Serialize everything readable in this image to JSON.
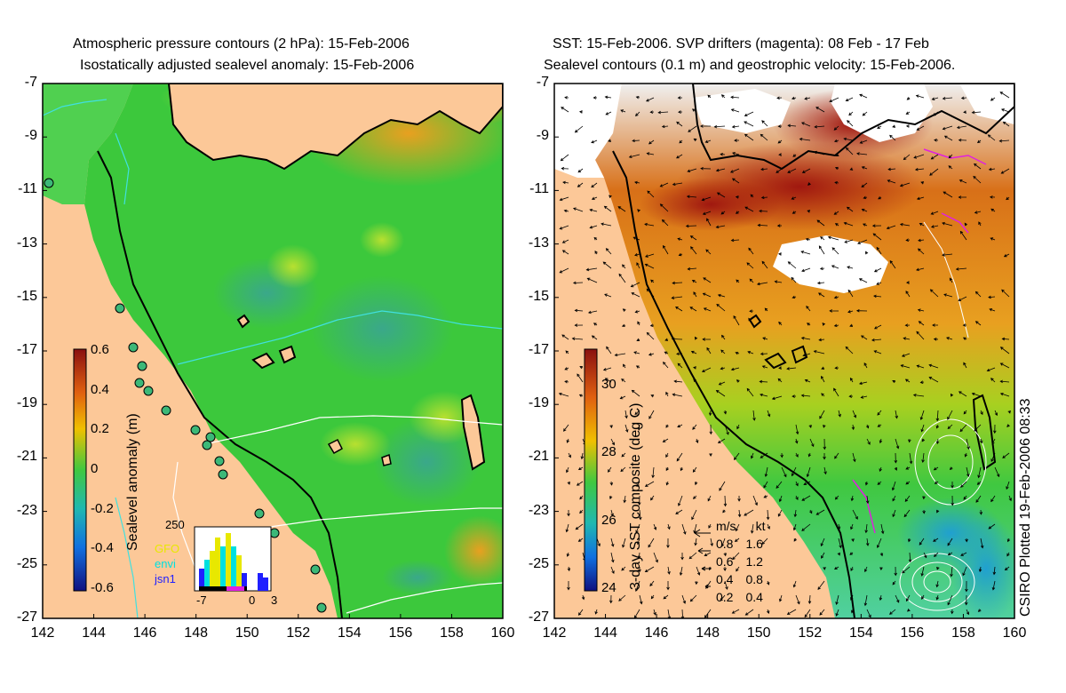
{
  "left_panel": {
    "title_line1": "Atmospheric pressure contours (2 hPa): 15-Feb-2006",
    "title_line2": "Isostatically adjusted sealevel anomaly: 15-Feb-2006",
    "colorbar_label": "Sealevel anomaly (m)",
    "colorbar_ticks": [
      "0.6",
      "0.4",
      "0.2",
      "0",
      "-0.2",
      "-0.4",
      "-0.6"
    ],
    "histogram": {
      "ymax_label": "250",
      "legend": [
        {
          "label": "GFO",
          "color": "#e8e800"
        },
        {
          "label": "envi",
          "color": "#00e0e0"
        },
        {
          "label": "jsn1",
          "color": "#2020ff"
        }
      ],
      "x_ticks": [
        "-7",
        "0",
        "3"
      ]
    }
  },
  "right_panel": {
    "title_line1": "SST: 15-Feb-2006. SVP drifters (magenta): 08 Feb - 17 Feb",
    "title_line2": "Sealevel contours (0.1 m) and geostrophic velocity: 15-Feb-2006.",
    "colorbar_label": "3-day SST composite (deg C)",
    "colorbar_ticks": [
      "30",
      "28",
      "26",
      "24"
    ],
    "velocity_legend": {
      "header_ms": "m/s",
      "header_kt": "kt",
      "rows": [
        {
          "ms": "0.8",
          "kt": "1.6"
        },
        {
          "ms": "0.6",
          "kt": "1.2"
        },
        {
          "ms": "0.4",
          "kt": "0.8"
        },
        {
          "ms": "0.2",
          "kt": "0.4"
        }
      ]
    },
    "credit": "CSIRO Plotted 19-Feb-2006 08:33"
  },
  "axes": {
    "y_ticks": [
      "-7",
      "-9",
      "-11",
      "-13",
      "-15",
      "-17",
      "-19",
      "-21",
      "-23",
      "-25",
      "-27"
    ],
    "x_ticks": [
      "142",
      "144",
      "146",
      "148",
      "150",
      "152",
      "154",
      "156",
      "158",
      "160"
    ]
  },
  "colors": {
    "land": "#fcc898",
    "sla_green": "#3cc83c",
    "sst_orange": "#e8a020",
    "coast": "#000000",
    "contour_cyan": "#40e0e0",
    "contour_white": "#ffffff",
    "drifter": "#e020e0"
  }
}
